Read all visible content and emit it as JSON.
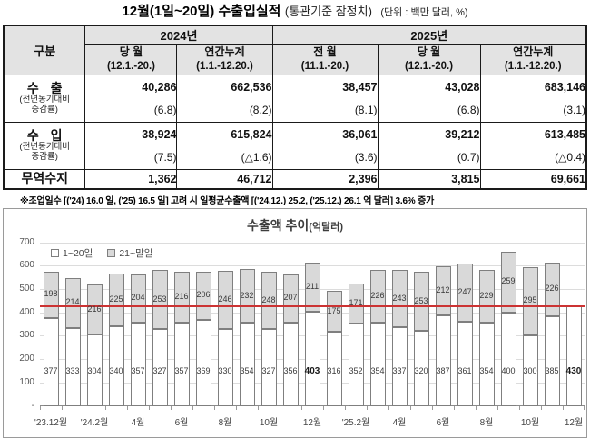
{
  "page": {
    "title_main": "12월(1일~20일) 수출입실적",
    "title_sub": "(통관기준 잠정치)",
    "title_unit": "(단위 : 백만 달러, %)",
    "footnote": "※조업일수 [('24) 16.0 일, ('25) 16.5 일] 고려 시 일평균수출액 [('24.12.) 25.2, ('25.12.) 26.1 억 달러] 3.6% 증가"
  },
  "table": {
    "corner_label": "구분",
    "year_2024": "2024년",
    "year_2025": "2025년",
    "columns": [
      {
        "name": "당 월",
        "period": "(12.1.-20.)"
      },
      {
        "name": "연간누계",
        "period": "(1.1.-12.20.)"
      },
      {
        "name": "전 월",
        "period": "(11.1.-20.)"
      },
      {
        "name": "당 월",
        "period": "(12.1.-20.)"
      },
      {
        "name": "연간누계",
        "period": "(1.1.-12.20.)"
      }
    ],
    "rows": [
      {
        "label": "수 출",
        "sublabel": "(전년동기대비\n증감률)",
        "values": [
          "40,286",
          "662,536",
          "38,457",
          "43,028",
          "683,146"
        ],
        "rates": [
          "(6.8)",
          "(8.2)",
          "(8.1)",
          "(6.8)",
          "(3.1)"
        ]
      },
      {
        "label": "수 입",
        "sublabel": "(전년동기대비\n증감률)",
        "values": [
          "38,924",
          "615,824",
          "36,061",
          "39,212",
          "613,485"
        ],
        "rates": [
          "(7.5)",
          "(△1.6)",
          "(3.6)",
          "(0.7)",
          "(△0.4)"
        ]
      },
      {
        "label": "무역수지",
        "values": [
          "1,362",
          "46,712",
          "2,396",
          "3,815",
          "69,661"
        ]
      }
    ]
  },
  "chart_data": {
    "type": "bar",
    "stacked": true,
    "title": "수출액 추이",
    "unit_label": "(억달러)",
    "ylim": [
      0,
      700
    ],
    "ytick_interval": 100,
    "zero_tick_label": "-",
    "grid": true,
    "legend_position": "top-left",
    "reference_line": {
      "value": 430,
      "color": "#cc3333"
    },
    "categories": [
      "'23.12월",
      "'24.1월",
      "'24.2월",
      "'24.3월",
      "'24.4월",
      "'24.5월",
      "'24.6월",
      "'24.7월",
      "'24.8월",
      "'24.9월",
      "'24.10월",
      "'24.11월",
      "'24.12월",
      "'25.1월",
      "'25.2월",
      "'25.3월",
      "'25.4월",
      "'25.5월",
      "'25.6월",
      "'25.7월",
      "'25.8월",
      "'25.9월",
      "'25.10월",
      "'25.11월",
      "'25.12월"
    ],
    "x_axis_labels_shown": [
      "'23.12월",
      "'24.2월",
      "4월",
      "6월",
      "8월",
      "10월",
      "12월",
      "'25.2월",
      "4월",
      "6월",
      "8월",
      "10월",
      "12월"
    ],
    "series": [
      {
        "name": "1~20일",
        "color": "#ffffff",
        "values": [
          377,
          333,
          304,
          340,
          357,
          327,
          357,
          369,
          330,
          354,
          327,
          356,
          403,
          316,
          352,
          354,
          337,
          320,
          387,
          361,
          354,
          400,
          300,
          385,
          430
        ]
      },
      {
        "name": "21~말일",
        "color": "#d9d9d9",
        "values": [
          198,
          214,
          216,
          225,
          204,
          253,
          216,
          206,
          246,
          232,
          248,
          207,
          211,
          175,
          171,
          226,
          243,
          253,
          212,
          247,
          229,
          259,
          295,
          226,
          null
        ]
      }
    ],
    "emphasized_indices": [
      12,
      24
    ]
  },
  "colors": {
    "bar_border": "#7f7f7f",
    "bar_gray_fill": "#d9d9d9",
    "reference_line": "#cc3333",
    "table_header_bg": "#e3e3e3"
  }
}
